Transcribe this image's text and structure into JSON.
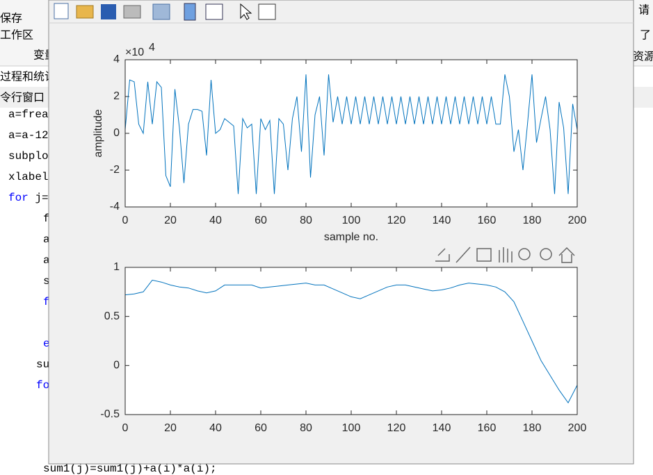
{
  "app": {
    "ribbon": [
      "保存",
      "工作区",
      "变量"
    ],
    "right_ribbon": [
      "请",
      "了",
      "资源"
    ],
    "panel_titles": [
      "过程和统计",
      "令行窗口"
    ],
    "code_lines": [
      {
        "rest": "a=frea"
      },
      {
        "rest": "a=a-12"
      },
      {
        "rest": "subplo"
      },
      {
        "rest": "xlabel"
      },
      {
        "keyword": "for",
        "rest": " j="
      },
      {
        "rest": "f"
      },
      {
        "rest": "a"
      },
      {
        "rest": "a"
      },
      {
        "rest": "s"
      },
      {
        "keyword": "f"
      },
      {
        "keyword": "e"
      },
      {
        "rest": "su"
      },
      {
        "keyword": "fo"
      },
      {
        "rest": "sum1(j)=sum1(j)+a(i)*a(i);"
      }
    ]
  },
  "chart_data": [
    {
      "type": "line",
      "xlabel": "sample no.",
      "ylabel": "amplitude",
      "exponent_base": "×10",
      "exponent_power": "4",
      "x": [
        0,
        2,
        4,
        6,
        8,
        10,
        12,
        14,
        16,
        18,
        20,
        22,
        24,
        26,
        28,
        30,
        32,
        34,
        36,
        38,
        40,
        42,
        44,
        46,
        48,
        50,
        52,
        54,
        56,
        58,
        60,
        62,
        64,
        66,
        68,
        70,
        72,
        74,
        76,
        78,
        80,
        82,
        84,
        86,
        88,
        90,
        92,
        94,
        96,
        98,
        100,
        102,
        104,
        106,
        108,
        110,
        112,
        114,
        116,
        118,
        120,
        122,
        124,
        126,
        128,
        130,
        132,
        134,
        136,
        138,
        140,
        142,
        144,
        146,
        148,
        150,
        152,
        154,
        156,
        158,
        160,
        162,
        164,
        166,
        168,
        170,
        172,
        174,
        176,
        178,
        180,
        182,
        184,
        186,
        188,
        190,
        192,
        194,
        196,
        198,
        200
      ],
      "series": [
        {
          "color": "#0072bd",
          "values": [
            0.2,
            2.9,
            2.8,
            0.5,
            0,
            2.8,
            0.5,
            2.8,
            2.5,
            -2.3,
            -2.9,
            2.4,
            0.3,
            -2.7,
            0.5,
            1.3,
            1.3,
            1.2,
            -1.2,
            2.9,
            0,
            0.2,
            0.8,
            0.6,
            0.4,
            -3.3,
            0.8,
            0.3,
            0.5,
            -3.3,
            0.8,
            0.2,
            0.7,
            -3.3,
            0.8,
            0.5,
            -2.0,
            0.8,
            2.0,
            -1.0,
            3.2,
            -2.4,
            1.0,
            2.0,
            -1.2,
            3.2,
            0.6,
            2.0,
            0.5,
            2.0,
            0.5,
            2.0,
            0.5,
            2.0,
            0.5,
            2.0,
            0.5,
            2.0,
            0.5,
            2.0,
            0.5,
            2.0,
            0.5,
            2.0,
            0.5,
            2.0,
            0.5,
            2.0,
            0.5,
            2.0,
            0.5,
            2.0,
            0.5,
            2.0,
            0.5,
            2.0,
            0.5,
            2.0,
            0.5,
            2.0,
            0.5,
            2.0,
            0.5,
            0.5,
            3.2,
            2.0,
            -1.0,
            0.2,
            -2.0,
            0.5,
            3.2,
            -0.5,
            0.8,
            2.0,
            0.2,
            -3.3,
            1.7,
            0.3,
            -3.3,
            1.6,
            0.2
          ]
        }
      ],
      "xlim": [
        0,
        200
      ],
      "ylim": [
        -4,
        4
      ],
      "xticks": [
        0,
        20,
        40,
        60,
        80,
        100,
        120,
        140,
        160,
        180,
        200
      ],
      "yticks": [
        -4,
        -2,
        0,
        2,
        4
      ]
    },
    {
      "type": "line",
      "x": [
        0,
        4,
        8,
        12,
        16,
        20,
        24,
        28,
        32,
        36,
        40,
        44,
        48,
        52,
        56,
        60,
        64,
        68,
        72,
        76,
        80,
        84,
        88,
        92,
        96,
        100,
        104,
        108,
        112,
        116,
        120,
        124,
        128,
        132,
        136,
        140,
        144,
        148,
        152,
        156,
        160,
        164,
        168,
        172,
        176,
        180,
        184,
        188,
        192,
        196,
        200
      ],
      "series": [
        {
          "color": "#0072bd",
          "values": [
            0.72,
            0.73,
            0.75,
            0.87,
            0.85,
            0.82,
            0.8,
            0.79,
            0.76,
            0.74,
            0.76,
            0.82,
            0.82,
            0.82,
            0.82,
            0.79,
            0.8,
            0.81,
            0.82,
            0.83,
            0.84,
            0.82,
            0.82,
            0.78,
            0.74,
            0.7,
            0.68,
            0.72,
            0.76,
            0.8,
            0.82,
            0.82,
            0.8,
            0.78,
            0.76,
            0.77,
            0.79,
            0.82,
            0.84,
            0.83,
            0.82,
            0.8,
            0.75,
            0.65,
            0.45,
            0.25,
            0.05,
            -0.1,
            -0.25,
            -0.38,
            -0.2
          ]
        }
      ],
      "xlim": [
        0,
        200
      ],
      "ylim": [
        -0.5,
        1
      ],
      "xticks": [
        0,
        20,
        40,
        60,
        80,
        100,
        120,
        140,
        160,
        180,
        200
      ],
      "yticks": [
        -0.5,
        0,
        0.5,
        1
      ]
    }
  ]
}
